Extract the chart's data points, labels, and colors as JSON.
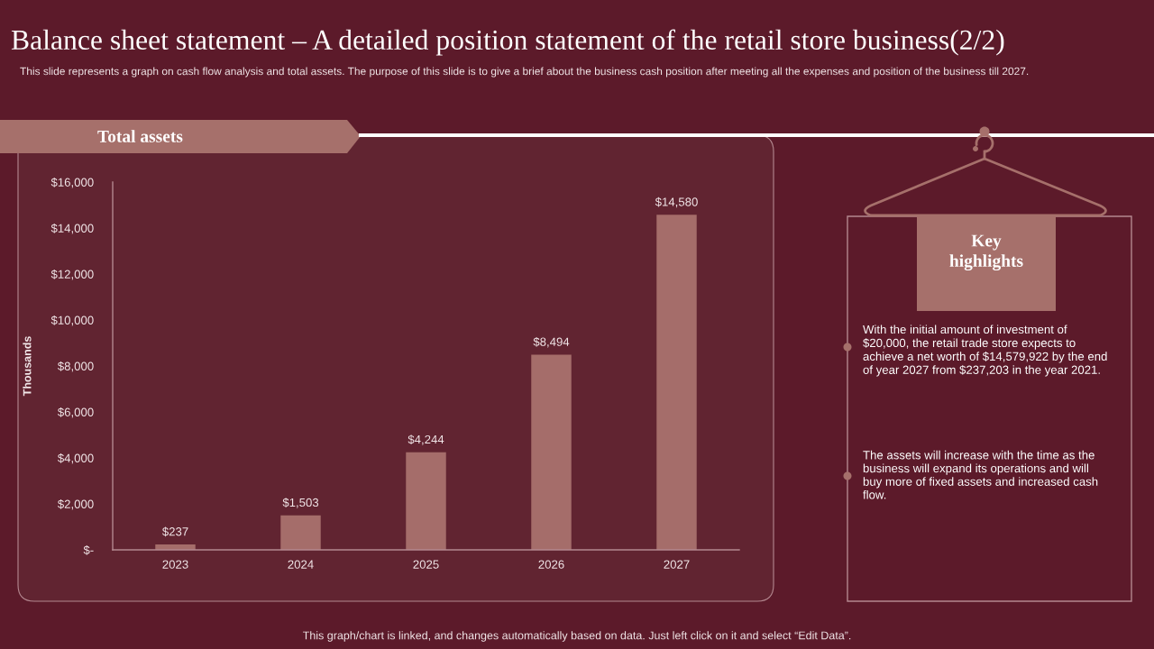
{
  "chart_data": [
    {
      "type": "other",
      "title": "Balance sheet statement – A detailed position statement of the retail store business(2/2)",
      "subtitle": "This slide represents a graph on cash flow analysis and total assets. The purpose of this slide is to give a brief about the business cash position after meeting all the expenses and position of the business till 2027."
    },
    {
      "type": "bar",
      "title": "Total assets",
      "ylabel": "Thousands",
      "categories": [
        "2023",
        "2024",
        "2025",
        "2026",
        "2027"
      ],
      "values": [
        237,
        1503,
        4244,
        8494,
        14580
      ],
      "value_labels": [
        "$237",
        "$1,503",
        "$4,244",
        "$8,494",
        "$14,580"
      ],
      "color": "#a56d6a",
      "ylim": [
        0,
        16000
      ],
      "yticks": [
        {
          "value": 0,
          "label": "$-"
        },
        {
          "value": 2000,
          "label": "$2,000"
        },
        {
          "value": 4000,
          "label": "$4,000"
        },
        {
          "value": 6000,
          "label": "$6,000"
        },
        {
          "value": 8000,
          "label": "$8,000"
        },
        {
          "value": 10000,
          "label": "$10,000"
        },
        {
          "value": 12000,
          "label": "$12,000"
        },
        {
          "value": 14000,
          "label": "$14,000"
        },
        {
          "value": 16000,
          "label": "$16,000"
        }
      ],
      "grid": false,
      "annotations": [
        "This graph/chart is linked, and changes automatically based on data. Just left click on it and select “Edit Data”."
      ]
    },
    {
      "type": "other",
      "title": "Key highlights",
      "annotations": [
        "With the initial amount of investment of $20,000, the retail trade store expects to achieve a net worth of $14,579,922 by the end of year 2027 from $237,203 in the year 2021.",
        "The assets will increase with the time as the business will expand its operations and will buy more of fixed assets and increased cash flow."
      ]
    }
  ]
}
